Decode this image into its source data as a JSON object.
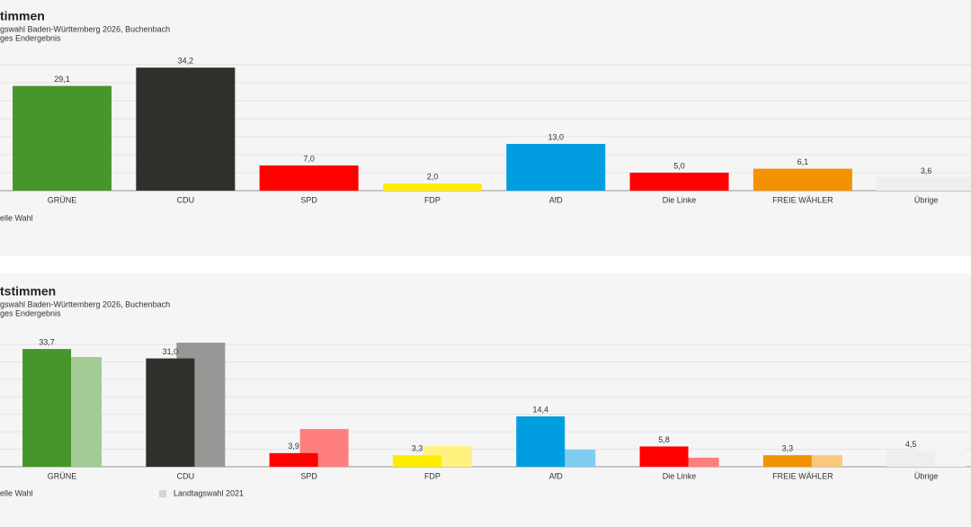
{
  "chart_data": [
    {
      "type": "bar",
      "title": "timmen",
      "subtitle": [
        "gswahl Baden-Württemberg 2026, Buchenbach",
        "ges Endergebnis"
      ],
      "categories": [
        "GRÜNE",
        "CDU",
        "SPD",
        "FDP",
        "AfD",
        "Die Linke",
        "FREIE WÄHLER",
        "Übrige"
      ],
      "series": [
        {
          "name": "elle Wahl",
          "colors": [
            "#46962b",
            "#312f2c",
            "#ff0000",
            "#ffed00",
            "#009ee0",
            "#ff0000",
            "#f39200",
            "#eeeeee"
          ],
          "values": [
            29.1,
            34.2,
            7.0,
            2.0,
            13.0,
            5.0,
            6.1,
            3.6
          ],
          "value_labels": [
            "29,1",
            "34,2",
            "7,0",
            "2,0",
            "13,0",
            "5,0",
            "6,1",
            "3,6"
          ]
        }
      ],
      "ylim": [
        0,
        35
      ],
      "yticks": [
        0,
        5,
        10,
        15,
        20,
        25,
        30,
        35
      ],
      "grid": true
    },
    {
      "type": "bar",
      "title": "tstimmen",
      "subtitle": [
        "gswahl Baden-Württemberg 2026, Buchenbach",
        "ges Endergebnis"
      ],
      "categories": [
        "GRÜNE",
        "CDU",
        "SPD",
        "FDP",
        "AfD",
        "Die Linke",
        "FREIE WÄHLER",
        "Übrige"
      ],
      "series": [
        {
          "name": "elle Wahl",
          "colors": [
            "#46962b",
            "#312f2c",
            "#ff0000",
            "#ffed00",
            "#009ee0",
            "#ff0000",
            "#f39200",
            "#eeeeee"
          ],
          "values": [
            33.7,
            31.0,
            3.9,
            3.3,
            14.4,
            5.8,
            3.3,
            4.5
          ],
          "value_labels": [
            "33,7",
            "31,0",
            "3,9",
            "3,3",
            "14,4",
            "5,8",
            "3,3",
            "4,5"
          ]
        },
        {
          "name": "Landtagswahl 2021",
          "legend_color": "#d4d4d4",
          "colors": [
            "#a2cb95",
            "#989796",
            "#ff7f7f",
            "#fff27f",
            "#7fcef0",
            "#ff7f7f",
            "#f9c87f",
            "#f4f4f4"
          ],
          "values": [
            31.4,
            35.5,
            10.8,
            5.9,
            4.9,
            2.6,
            3.3,
            7.4
          ]
        }
      ],
      "ylim": [
        0,
        35
      ],
      "yticks": [
        0,
        5,
        10,
        15,
        20,
        25,
        30,
        35
      ],
      "grid": true
    }
  ]
}
